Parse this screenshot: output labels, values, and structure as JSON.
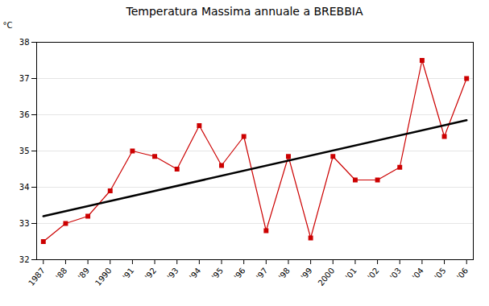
{
  "chart_data": {
    "type": "line",
    "title": "Temperatura Massima annuale a BREBBIA",
    "ylabel": "°C",
    "x": [
      1987,
      1988,
      1989,
      1990,
      1991,
      1992,
      1993,
      1994,
      1995,
      1996,
      1997,
      1998,
      1999,
      2000,
      2001,
      2002,
      2003,
      2004,
      2005,
      2006
    ],
    "series": [
      {
        "color": "#cc0000",
        "marker": "square",
        "values": [
          32.5,
          33.0,
          33.2,
          33.9,
          35.0,
          34.85,
          34.5,
          35.7,
          34.6,
          35.4,
          32.8,
          34.85,
          32.6,
          34.85,
          34.2,
          34.2,
          34.55,
          37.5,
          35.4,
          37.0
        ]
      },
      {
        "color": "#000000",
        "x": [
          1987,
          2006
        ],
        "values": [
          33.2,
          35.85
        ]
      }
    ],
    "xlim": [
      1986.7,
      2006.3
    ],
    "xticks": [
      1987,
      {
        "value": 1988,
        "label": "'88"
      },
      {
        "value": 1989,
        "label": "'89"
      },
      1990,
      {
        "value": 1991,
        "label": "'91"
      },
      {
        "value": 1992,
        "label": "'92"
      },
      {
        "value": 1993,
        "label": "'93"
      },
      {
        "value": 1994,
        "label": "'94"
      },
      {
        "value": 1995,
        "label": "'95"
      },
      {
        "value": 1996,
        "label": "'96"
      },
      {
        "value": 1997,
        "label": "'97"
      },
      {
        "value": 1998,
        "label": "'98"
      },
      {
        "value": 1999,
        "label": "'99"
      },
      2000,
      {
        "value": 2001,
        "label": "'01"
      },
      {
        "value": 2002,
        "label": "'02"
      },
      {
        "value": 2003,
        "label": "'03"
      },
      {
        "value": 2004,
        "label": "'04"
      },
      {
        "value": 2005,
        "label": "'05"
      },
      {
        "value": 2006,
        "label": "'06"
      }
    ],
    "ylim": [
      32,
      38
    ],
    "yticks": [
      32,
      33,
      34,
      35,
      36,
      37,
      38
    ],
    "grid": true
  }
}
